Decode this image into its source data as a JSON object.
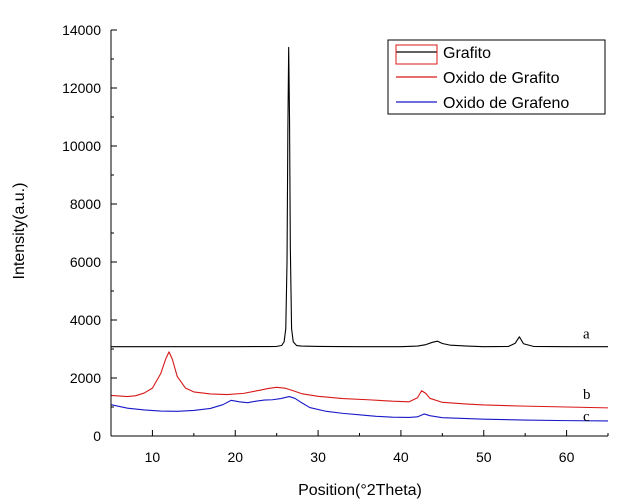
{
  "chart_data": {
    "type": "line",
    "title": "",
    "xlabel": "Position(°2Theta)",
    "ylabel": "Intensity(a.u.)",
    "xlim": [
      5,
      65
    ],
    "ylim": [
      0,
      14000
    ],
    "xticks": [
      10,
      20,
      30,
      40,
      50,
      60
    ],
    "yticks": [
      0,
      2000,
      4000,
      6000,
      8000,
      10000,
      12000,
      14000
    ],
    "grid": false,
    "legend_position": "top-right",
    "series": [
      {
        "name": "Grafito",
        "color": "#000000",
        "tag": "a",
        "points": [
          [
            5,
            3080
          ],
          [
            10,
            3080
          ],
          [
            15,
            3080
          ],
          [
            20,
            3080
          ],
          [
            24,
            3085
          ],
          [
            25,
            3090
          ],
          [
            25.6,
            3120
          ],
          [
            25.9,
            3250
          ],
          [
            26.1,
            3700
          ],
          [
            26.25,
            6000
          ],
          [
            26.35,
            10500
          ],
          [
            26.45,
            13400
          ],
          [
            26.55,
            11000
          ],
          [
            26.65,
            6500
          ],
          [
            26.8,
            3700
          ],
          [
            27,
            3250
          ],
          [
            27.4,
            3120
          ],
          [
            28,
            3100
          ],
          [
            30,
            3090
          ],
          [
            35,
            3080
          ],
          [
            40,
            3080
          ],
          [
            42,
            3100
          ],
          [
            43,
            3150
          ],
          [
            43.8,
            3230
          ],
          [
            44.4,
            3270
          ],
          [
            45,
            3190
          ],
          [
            46,
            3130
          ],
          [
            48,
            3100
          ],
          [
            50,
            3080
          ],
          [
            53,
            3090
          ],
          [
            53.8,
            3200
          ],
          [
            54.3,
            3420
          ],
          [
            54.8,
            3180
          ],
          [
            56,
            3090
          ],
          [
            60,
            3080
          ],
          [
            65,
            3080
          ]
        ]
      },
      {
        "name": "Oxido de Grafito",
        "color": "#d81818",
        "tag": "b",
        "points": [
          [
            5,
            1400
          ],
          [
            7,
            1360
          ],
          [
            8,
            1390
          ],
          [
            9,
            1480
          ],
          [
            10,
            1650
          ],
          [
            11,
            2150
          ],
          [
            11.6,
            2650
          ],
          [
            12,
            2900
          ],
          [
            12.4,
            2650
          ],
          [
            13,
            2050
          ],
          [
            14,
            1650
          ],
          [
            15,
            1520
          ],
          [
            17,
            1450
          ],
          [
            19,
            1430
          ],
          [
            21,
            1470
          ],
          [
            23,
            1580
          ],
          [
            24,
            1640
          ],
          [
            25,
            1680
          ],
          [
            26,
            1650
          ],
          [
            27,
            1560
          ],
          [
            28,
            1460
          ],
          [
            30,
            1370
          ],
          [
            33,
            1290
          ],
          [
            36,
            1250
          ],
          [
            39,
            1200
          ],
          [
            41,
            1180
          ],
          [
            42,
            1320
          ],
          [
            42.5,
            1560
          ],
          [
            43,
            1470
          ],
          [
            43.5,
            1300
          ],
          [
            45,
            1160
          ],
          [
            48,
            1100
          ],
          [
            50,
            1070
          ],
          [
            55,
            1030
          ],
          [
            60,
            1000
          ],
          [
            65,
            970
          ]
        ]
      },
      {
        "name": "Oxido de Grafeno",
        "color": "#1818c8",
        "tag": "c",
        "points": [
          [
            5,
            1080
          ],
          [
            7,
            960
          ],
          [
            9,
            900
          ],
          [
            11,
            860
          ],
          [
            13,
            850
          ],
          [
            15,
            880
          ],
          [
            17,
            950
          ],
          [
            18.5,
            1080
          ],
          [
            19.5,
            1230
          ],
          [
            20.5,
            1180
          ],
          [
            21.5,
            1150
          ],
          [
            22.5,
            1200
          ],
          [
            23.5,
            1240
          ],
          [
            24.5,
            1250
          ],
          [
            25.5,
            1290
          ],
          [
            26.5,
            1360
          ],
          [
            27.2,
            1300
          ],
          [
            28,
            1150
          ],
          [
            29,
            980
          ],
          [
            31,
            850
          ],
          [
            33,
            780
          ],
          [
            35,
            730
          ],
          [
            37,
            680
          ],
          [
            39,
            650
          ],
          [
            41,
            640
          ],
          [
            42,
            660
          ],
          [
            42.8,
            760
          ],
          [
            43.5,
            700
          ],
          [
            45,
            630
          ],
          [
            48,
            600
          ],
          [
            50,
            580
          ],
          [
            55,
            550
          ],
          [
            60,
            530
          ],
          [
            65,
            520
          ]
        ]
      }
    ]
  }
}
